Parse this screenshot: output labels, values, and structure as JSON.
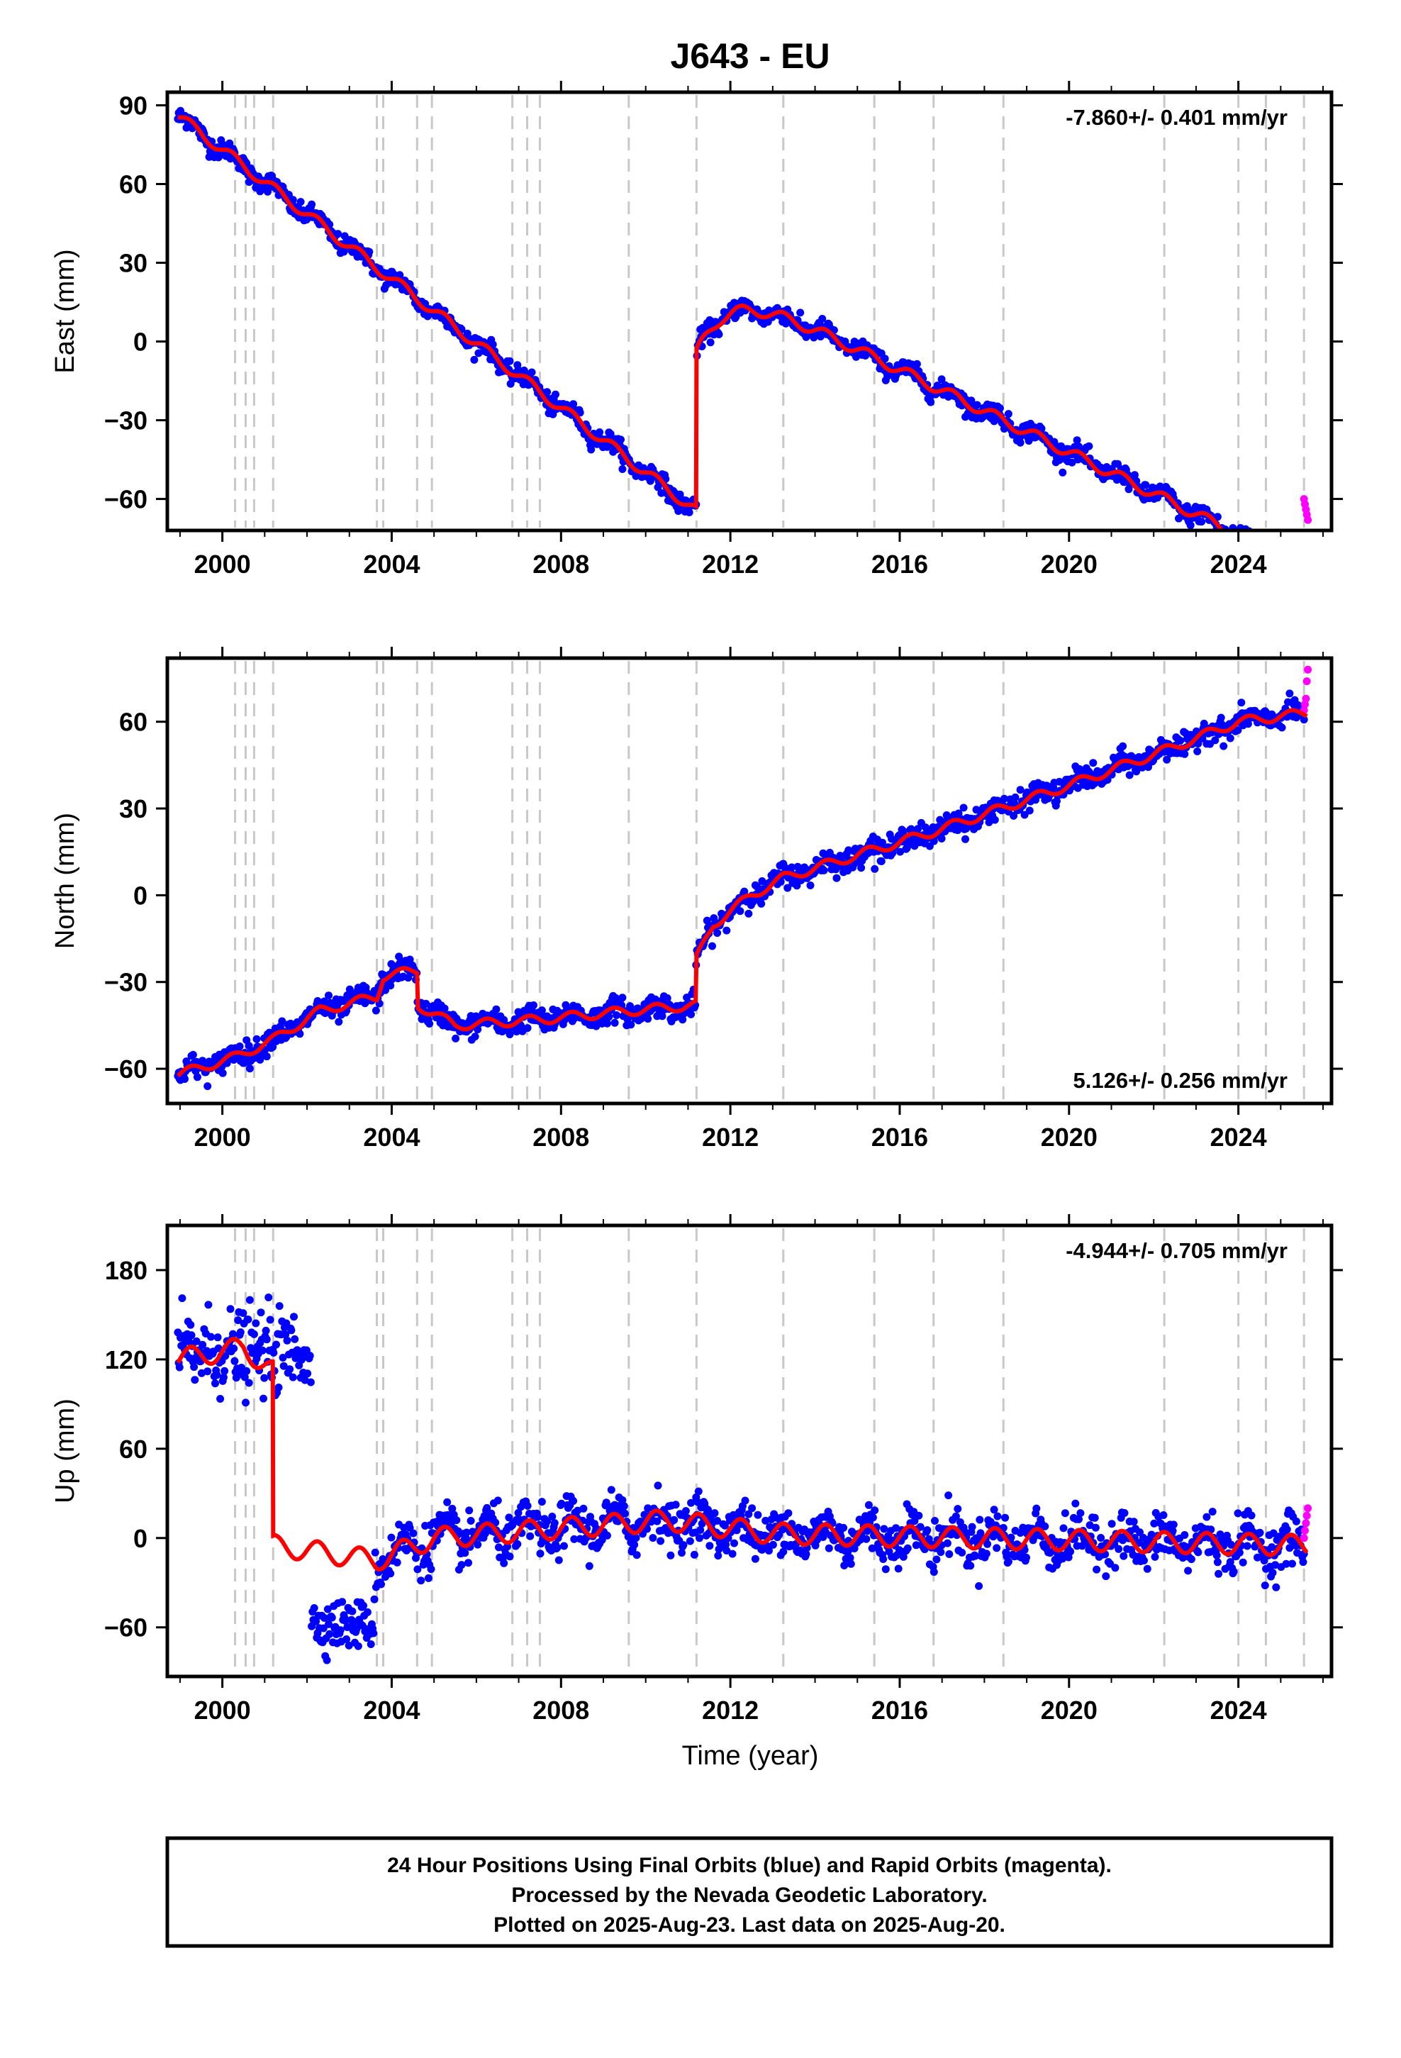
{
  "title": "J643 - EU",
  "xlabel": "Time (year)",
  "footer": [
    "24 Hour Positions Using Final Orbits (blue) and Rapid Orbits (magenta).",
    "Processed by the Nevada Geodetic Laboratory.",
    "Plotted on 2025-Aug-23. Last data on 2025-Aug-20."
  ],
  "colors": {
    "final": "#0000ff",
    "rapid": "#ff00ff",
    "model": "#ff0000",
    "events": "#c8c8c8"
  },
  "chart_data": [
    {
      "type": "scatter",
      "panel": "east",
      "ylabel": "East (mm)",
      "rate_text": "-7.860+/- 0.401 mm/yr",
      "rate_position": "top-right",
      "xlim": [
        1998.7,
        2026.2
      ],
      "ylim": [
        -72,
        95
      ],
      "xticks": [
        2000,
        2004,
        2008,
        2012,
        2016,
        2020,
        2024
      ],
      "xtick_labels": [
        "2000",
        "2004",
        "2008",
        "2012",
        "2016",
        "2020",
        "2024"
      ],
      "yticks": [
        -60,
        -30,
        0,
        30,
        60,
        90
      ],
      "ytick_labels": [
        "−60",
        "−30",
        "0",
        "30",
        "60",
        "90"
      ],
      "event_lines": [
        2000.3,
        2000.55,
        2000.75,
        2001.2,
        2003.65,
        2003.8,
        2004.6,
        2004.95,
        2006.85,
        2007.2,
        2007.5,
        2009.6,
        2011.2,
        2013.25,
        2015.4,
        2016.8,
        2018.45,
        2022.25,
        2024.0,
        2024.65,
        2025.55
      ],
      "model": {
        "segments": [
          {
            "t_start": 1998.95,
            "t_end": 2011.19,
            "v0": 86,
            "rate": -12.3
          },
          {
            "t_start": 2011.19,
            "t_end": 2025.6,
            "v0": -5,
            "rate": -7.86
          }
        ],
        "postseismic": {
          "event": 2011.19,
          "amplitude": 32,
          "tau_years": 0.7
        },
        "seasonal_amplitude": 2.0,
        "scatter_sigma": 1.8
      },
      "final_orbits": {
        "t_start": 1998.95,
        "t_end": 2025.55,
        "note_points": "daily solutions"
      },
      "rapid_orbits": {
        "t_start": 2025.55,
        "t_end": 2025.64,
        "values": [
          -60,
          -62,
          -64,
          -66,
          -68
        ]
      }
    },
    {
      "type": "scatter",
      "panel": "north",
      "ylabel": "North (mm)",
      "rate_text": "5.126+/- 0.256 mm/yr",
      "rate_position": "bottom-right",
      "xlim": [
        1998.7,
        2026.2
      ],
      "ylim": [
        -72,
        82
      ],
      "xticks": [
        2000,
        2004,
        2008,
        2012,
        2016,
        2020,
        2024
      ],
      "xtick_labels": [
        "2000",
        "2004",
        "2008",
        "2012",
        "2016",
        "2020",
        "2024"
      ],
      "yticks": [
        -60,
        -30,
        0,
        30,
        60
      ],
      "ytick_labels": [
        "−60",
        "−30",
        "0",
        "30",
        "60"
      ],
      "event_lines": [
        2000.3,
        2000.55,
        2000.75,
        2001.2,
        2003.65,
        2003.8,
        2004.6,
        2004.95,
        2006.85,
        2007.2,
        2007.5,
        2009.6,
        2011.2,
        2013.25,
        2015.4,
        2016.8,
        2018.45,
        2022.25,
        2024.0,
        2024.65,
        2025.55
      ],
      "model": {
        "knots": [
          [
            1998.95,
            -62
          ],
          [
            2000.3,
            -56
          ],
          [
            2001.2,
            -50
          ],
          [
            2002.3,
            -40
          ],
          [
            2003.65,
            -35
          ],
          [
            2003.8,
            -28
          ],
          [
            2004.6,
            -26
          ],
          [
            2004.62,
            -38
          ],
          [
            2005.5,
            -45
          ],
          [
            2007.5,
            -43
          ],
          [
            2009.6,
            -40
          ],
          [
            2011.18,
            -38
          ],
          [
            2011.2,
            -22
          ],
          [
            2011.6,
            -10
          ],
          [
            2012.5,
            0
          ],
          [
            2013.25,
            6
          ],
          [
            2016.8,
            22
          ],
          [
            2020.0,
            38
          ],
          [
            2022.25,
            50
          ],
          [
            2024.0,
            60
          ],
          [
            2025.6,
            63
          ]
        ],
        "seasonal_amplitude": 1.6,
        "scatter_sigma": 2.0
      },
      "final_orbits": {
        "t_start": 1998.95,
        "t_end": 2025.55,
        "note_points": "daily solutions"
      },
      "rapid_orbits": {
        "t_start": 2025.55,
        "t_end": 2025.64,
        "values": [
          64,
          66,
          68,
          74,
          78
        ]
      }
    },
    {
      "type": "scatter",
      "panel": "up",
      "ylabel": "Up (mm)",
      "rate_text": "-4.944+/- 0.705 mm/yr",
      "rate_position": "top-right",
      "xlim": [
        1998.7,
        2026.2
      ],
      "ylim": [
        -93,
        210
      ],
      "xticks": [
        2000,
        2004,
        2008,
        2012,
        2016,
        2020,
        2024
      ],
      "xtick_labels": [
        "2000",
        "2004",
        "2008",
        "2012",
        "2016",
        "2020",
        "2024"
      ],
      "yticks": [
        -60,
        0,
        60,
        120,
        180
      ],
      "ytick_labels": [
        "−60",
        "0",
        "60",
        "120",
        "180"
      ],
      "event_lines": [
        2000.3,
        2000.55,
        2000.75,
        2001.2,
        2003.65,
        2003.8,
        2004.6,
        2004.95,
        2006.85,
        2007.2,
        2007.5,
        2009.6,
        2011.2,
        2013.25,
        2015.4,
        2016.8,
        2018.45,
        2022.25,
        2024.0,
        2024.65,
        2025.55
      ],
      "model": {
        "knots": [
          [
            1998.95,
            120
          ],
          [
            2000.5,
            128
          ],
          [
            2001.19,
            112
          ],
          [
            2001.2,
            -5
          ],
          [
            2003.65,
            -15
          ],
          [
            2005.0,
            0
          ],
          [
            2010.5,
            12
          ],
          [
            2013.0,
            3
          ],
          [
            2025.6,
            -5
          ]
        ],
        "seasonal_amplitude": 7,
        "scatter_sigma": 8
      },
      "data_clusters": [
        {
          "t_start": 1998.95,
          "t_end": 2002.1,
          "center": 125,
          "sigma": 14
        },
        {
          "t_start": 2002.1,
          "t_end": 2003.6,
          "center": -58,
          "sigma": 8
        },
        {
          "t_start": 2003.6,
          "t_end": 2025.55,
          "center": "model",
          "sigma": 8
        }
      ],
      "rapid_orbits": {
        "t_start": 2025.55,
        "t_end": 2025.64,
        "values": [
          0,
          5,
          10,
          15,
          20
        ]
      }
    }
  ]
}
